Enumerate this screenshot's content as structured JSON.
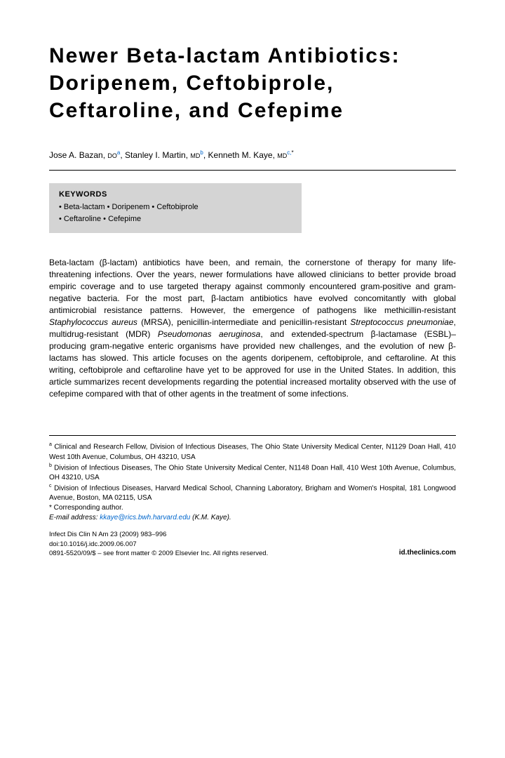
{
  "title": "Newer Beta-lactam Antibiotics: Doripenem, Ceftobiprole, Ceftaroline, and Cefepime",
  "authors": {
    "a1_name": "Jose A. Bazan,",
    "a1_deg": "DO",
    "a1_sup": "a",
    "a2_name": "Stanley I. Martin,",
    "a2_deg": "MD",
    "a2_sup": "b",
    "a3_name": "Kenneth M. Kaye,",
    "a3_deg": "MD",
    "a3_sup": "c,",
    "a3_star": "*"
  },
  "keywords": {
    "label": "KEYWORDS",
    "line1": "• Beta-lactam • Doripenem • Ceftobiprole",
    "line2": "• Ceftaroline • Cefepime"
  },
  "body": {
    "p1a": "Beta-lactam (β-lactam) antibiotics have been, and remain, the cornerstone of therapy for many life-threatening infections. Over the years, newer formulations have allowed clinicians to better provide broad empiric coverage and to use targeted therapy against commonly encountered gram-positive and gram-negative bacteria. For the most part, β-lactam antibiotics have evolved concomitantly with global antimicrobial resistance patterns. However, the emergence of pathogens like methicillin-resistant ",
    "p1b": "Staphylococcus aureus",
    "p1c": " (MRSA), penicillin-intermediate and penicillin-resistant ",
    "p1d": "Streptococcus pneumoniae",
    "p1e": ", multidrug-resistant (MDR) ",
    "p1f": "Pseudomonas aeruginosa",
    "p1g": ", and extended-spectrum β-lactamase (ESBL)–producing gram-negative enteric organisms have provided new challenges, and the evolution of new β-lactams has slowed. This article focuses on the agents doripenem, ceftobiprole, and ceftaroline. At this writing, ceftobiprole and ceftaroline have yet to be approved for use in the United States. In addition, this article summarizes recent developments regarding the potential increased mortality observed with the use of cefepime compared with that of other agents in the treatment of some infections."
  },
  "affil": {
    "a_sup": "a",
    "a": " Clinical and Research Fellow, Division of Infectious Diseases, The Ohio State University Medical Center, N1129 Doan Hall, 410 West 10th Avenue, Columbus, OH 43210, USA",
    "b_sup": "b",
    "b": " Division of Infectious Diseases, The Ohio State University Medical Center, N1148 Doan Hall, 410 West 10th Avenue, Columbus, OH 43210, USA",
    "c_sup": "c",
    "c": " Division of Infectious Diseases, Harvard Medical School, Channing Laboratory, Brigham and Women's Hospital, 181 Longwood Avenue, Boston, MA 02115, USA",
    "corr": "* Corresponding author.",
    "email_label": "E-mail address:",
    "email": "kkaye@rics.bwh.harvard.edu",
    "email_suffix": " (K.M. Kaye)."
  },
  "footer": {
    "journal": "Infect Dis Clin N Am 23 (2009) 983–996",
    "doi": "doi:10.1016/j.idc.2009.06.007",
    "issn": "0891-5520/09/$ – see front matter © 2009 Elsevier Inc. All rights reserved.",
    "site": "id.theclinics.com"
  },
  "colors": {
    "keyword_bg": "#d4d4d4",
    "link": "#0066cc",
    "text": "#000000",
    "background": "#ffffff"
  },
  "fonts": {
    "title_pt": 30,
    "author_pt": 12,
    "body_pt": 12,
    "keyword_pt": 11,
    "affil_pt": 10,
    "footer_pt": 9.5
  }
}
